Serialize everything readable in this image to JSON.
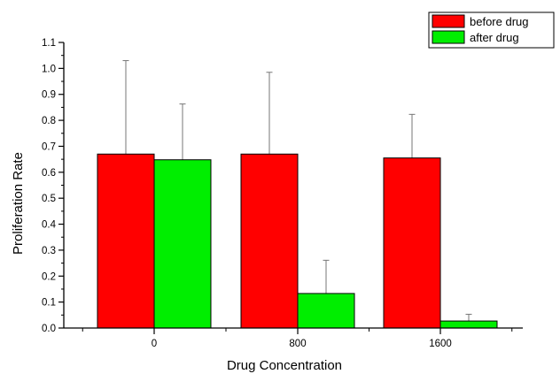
{
  "chart_data": {
    "type": "bar",
    "title": "",
    "xlabel": "Drug Concentration",
    "ylabel": "Proliferation Rate",
    "categories": [
      "0",
      "800",
      "1600"
    ],
    "ylim": [
      0.0,
      1.1
    ],
    "yticks": [
      "0.0",
      "0.1",
      "0.2",
      "0.3",
      "0.4",
      "0.5",
      "0.6",
      "0.7",
      "0.8",
      "0.9",
      "1.0",
      "1.1"
    ],
    "series": [
      {
        "name": "before drug",
        "color": "#ff0000",
        "values": [
          0.67,
          0.67,
          0.655
        ],
        "errors": [
          0.36,
          0.315,
          0.168
        ]
      },
      {
        "name": "after drug",
        "color": "#00ee00",
        "values": [
          0.648,
          0.133,
          0.027
        ],
        "errors": [
          0.215,
          0.128,
          0.026
        ]
      }
    ],
    "legend": "top-right",
    "grid": false,
    "error_bars": true
  }
}
